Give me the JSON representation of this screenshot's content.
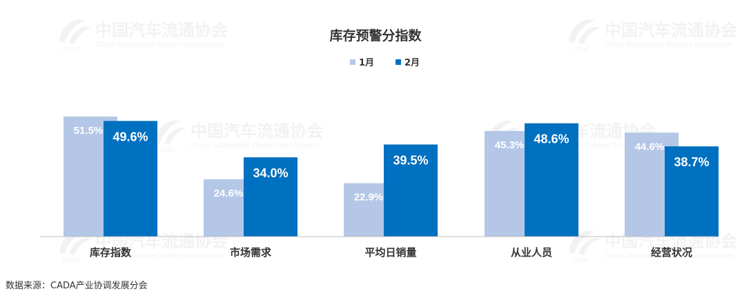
{
  "chart_data": {
    "type": "bar",
    "title": "库存预警分指数",
    "categories": [
      "库存指数",
      "市场需求",
      "平均日销量",
      "从业人员",
      "经营状况"
    ],
    "series": [
      {
        "name": "1月",
        "values": [
          51.5,
          24.6,
          22.9,
          45.3,
          44.6
        ],
        "labels": [
          "51.5%",
          "24.6%",
          "22.9%",
          "45.3%",
          "44.6%"
        ],
        "color": "#b4c7e7"
      },
      {
        "name": "2月",
        "values": [
          49.6,
          34.0,
          39.5,
          48.6,
          38.7
        ],
        "labels": [
          "49.6%",
          "34.0%",
          "39.5%",
          "48.6%",
          "38.7%"
        ],
        "color": "#0070c0"
      }
    ],
    "unit": "%",
    "legend": "top-center",
    "grid": false
  },
  "watermark": {
    "name": "中国汽车流通协会",
    "sub": "China Automobile Dealers Association",
    "logo": "CADA"
  },
  "source": "数据来源：CADA产业协调发展分会"
}
